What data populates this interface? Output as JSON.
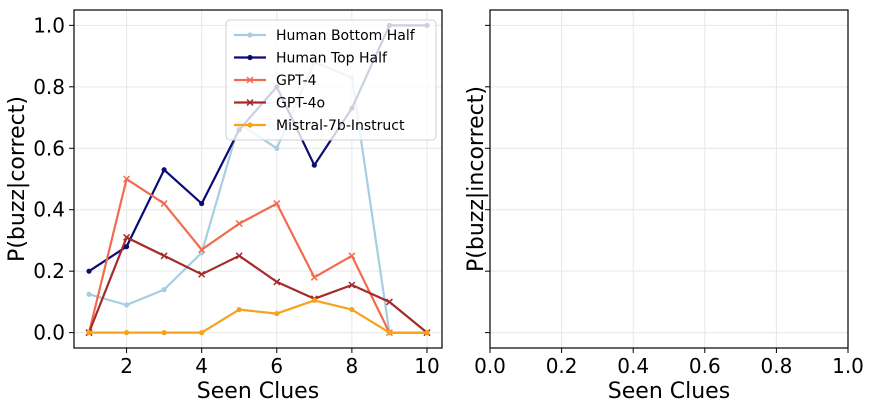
{
  "chart_data": [
    {
      "type": "line",
      "xlabel": "Seen Clues",
      "ylabel": "P(buzz|correct)",
      "xlim": [
        0.6,
        10.4
      ],
      "ylim": [
        -0.05,
        1.05
      ],
      "xticks": [
        "2",
        "4",
        "6",
        "8",
        "10"
      ],
      "yticks": [
        "0.0",
        "0.2",
        "0.4",
        "0.6",
        "0.8",
        "1.0"
      ],
      "grid": true,
      "legend": "top-right",
      "x": [
        1,
        2,
        3,
        4,
        5,
        6,
        7,
        8,
        9,
        10
      ],
      "series": [
        {
          "name": "Human Bottom Half",
          "color": "#a6cee3",
          "marker": "circle",
          "values": [
            0.125,
            0.09,
            0.14,
            0.26,
            0.68,
            0.6,
            0.88,
            0.83,
            0.0,
            0.0
          ]
        },
        {
          "name": "Human Top Half",
          "color": "#0b0b73",
          "marker": "circle",
          "values": [
            0.2,
            0.28,
            0.53,
            0.42,
            0.66,
            0.8,
            0.545,
            0.73,
            1.0,
            1.0
          ]
        },
        {
          "name": "GPT-4",
          "color": "#f26b4f",
          "marker": "x",
          "values": [
            0.0,
            0.5,
            0.42,
            0.27,
            0.355,
            0.42,
            0.18,
            0.25,
            0.0,
            0.0
          ]
        },
        {
          "name": "GPT-4o",
          "color": "#a52a2a",
          "marker": "x",
          "values": [
            0.0,
            0.31,
            0.25,
            0.19,
            0.25,
            0.165,
            0.11,
            0.155,
            0.1,
            0.0
          ]
        },
        {
          "name": "Mistral-7b-Instruct",
          "color": "#f5a31a",
          "marker": "circle",
          "values": [
            0.0,
            0.0,
            0.0,
            0.0,
            0.075,
            0.062,
            0.105,
            0.075,
            0.0,
            0.0
          ]
        }
      ]
    },
    {
      "type": "line",
      "xlabel": "Seen Clues",
      "ylabel": "P(buzz|incorrect)",
      "xlim": [
        0.0,
        1.0
      ],
      "xticks": [
        "0.0",
        "0.2",
        "0.4",
        "0.6",
        "0.8",
        "1.0"
      ],
      "grid": true,
      "series": []
    }
  ]
}
